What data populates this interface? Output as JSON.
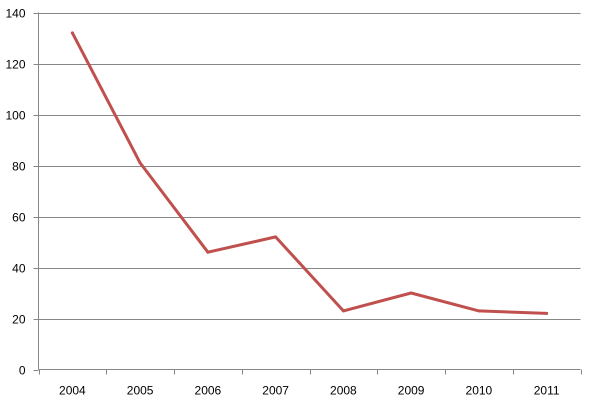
{
  "chart_data": {
    "type": "line",
    "title": "",
    "xlabel": "",
    "ylabel": "",
    "categories": [
      "2004",
      "2005",
      "2006",
      "2007",
      "2008",
      "2009",
      "2010",
      "2011"
    ],
    "series": [
      {
        "values": [
          132,
          81,
          46,
          52,
          23,
          30,
          23,
          22
        ],
        "color": "#C0504D"
      }
    ],
    "ylim": [
      0,
      140
    ],
    "yticks": [
      0,
      20,
      40,
      60,
      80,
      100,
      120,
      140
    ],
    "grid": true,
    "legend": "none"
  }
}
